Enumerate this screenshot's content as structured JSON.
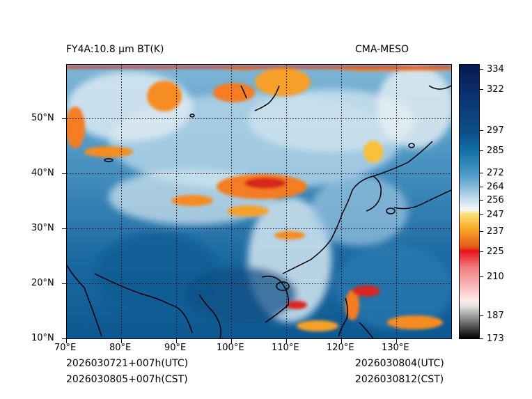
{
  "header": {
    "product_title": "FY4A:10.8 µm BT(K)",
    "model_label": "CMA-MESO"
  },
  "footer": {
    "init_utc": "2026030721+007h(UTC)",
    "init_cst": "2026030805+007h(CST)",
    "valid_utc": "2026030804(UTC)",
    "valid_cst": "2026030812(CST)"
  },
  "map": {
    "lat_labels": [
      "50°N",
      "40°N",
      "30°N",
      "20°N",
      "10°N"
    ],
    "lon_labels": [
      "70°E",
      "80°E",
      "90°E",
      "100°E",
      "110°E",
      "120°E",
      "130°E"
    ],
    "grid_style": "dotted"
  },
  "colorbar": {
    "unit": "K",
    "tick_labels": [
      "334",
      "322",
      "297",
      "285",
      "272",
      "264",
      "256",
      "247",
      "237",
      "225",
      "210",
      "187",
      "173"
    ]
  },
  "colors": {
    "warm_surface": "#0a4f86",
    "mid_cloud": "#5ba4cc",
    "high_cloud": "#e9f2f7",
    "cold_top_orange": "#f5781e",
    "cold_top_red": "#d8251c",
    "coastline": "#000000"
  }
}
